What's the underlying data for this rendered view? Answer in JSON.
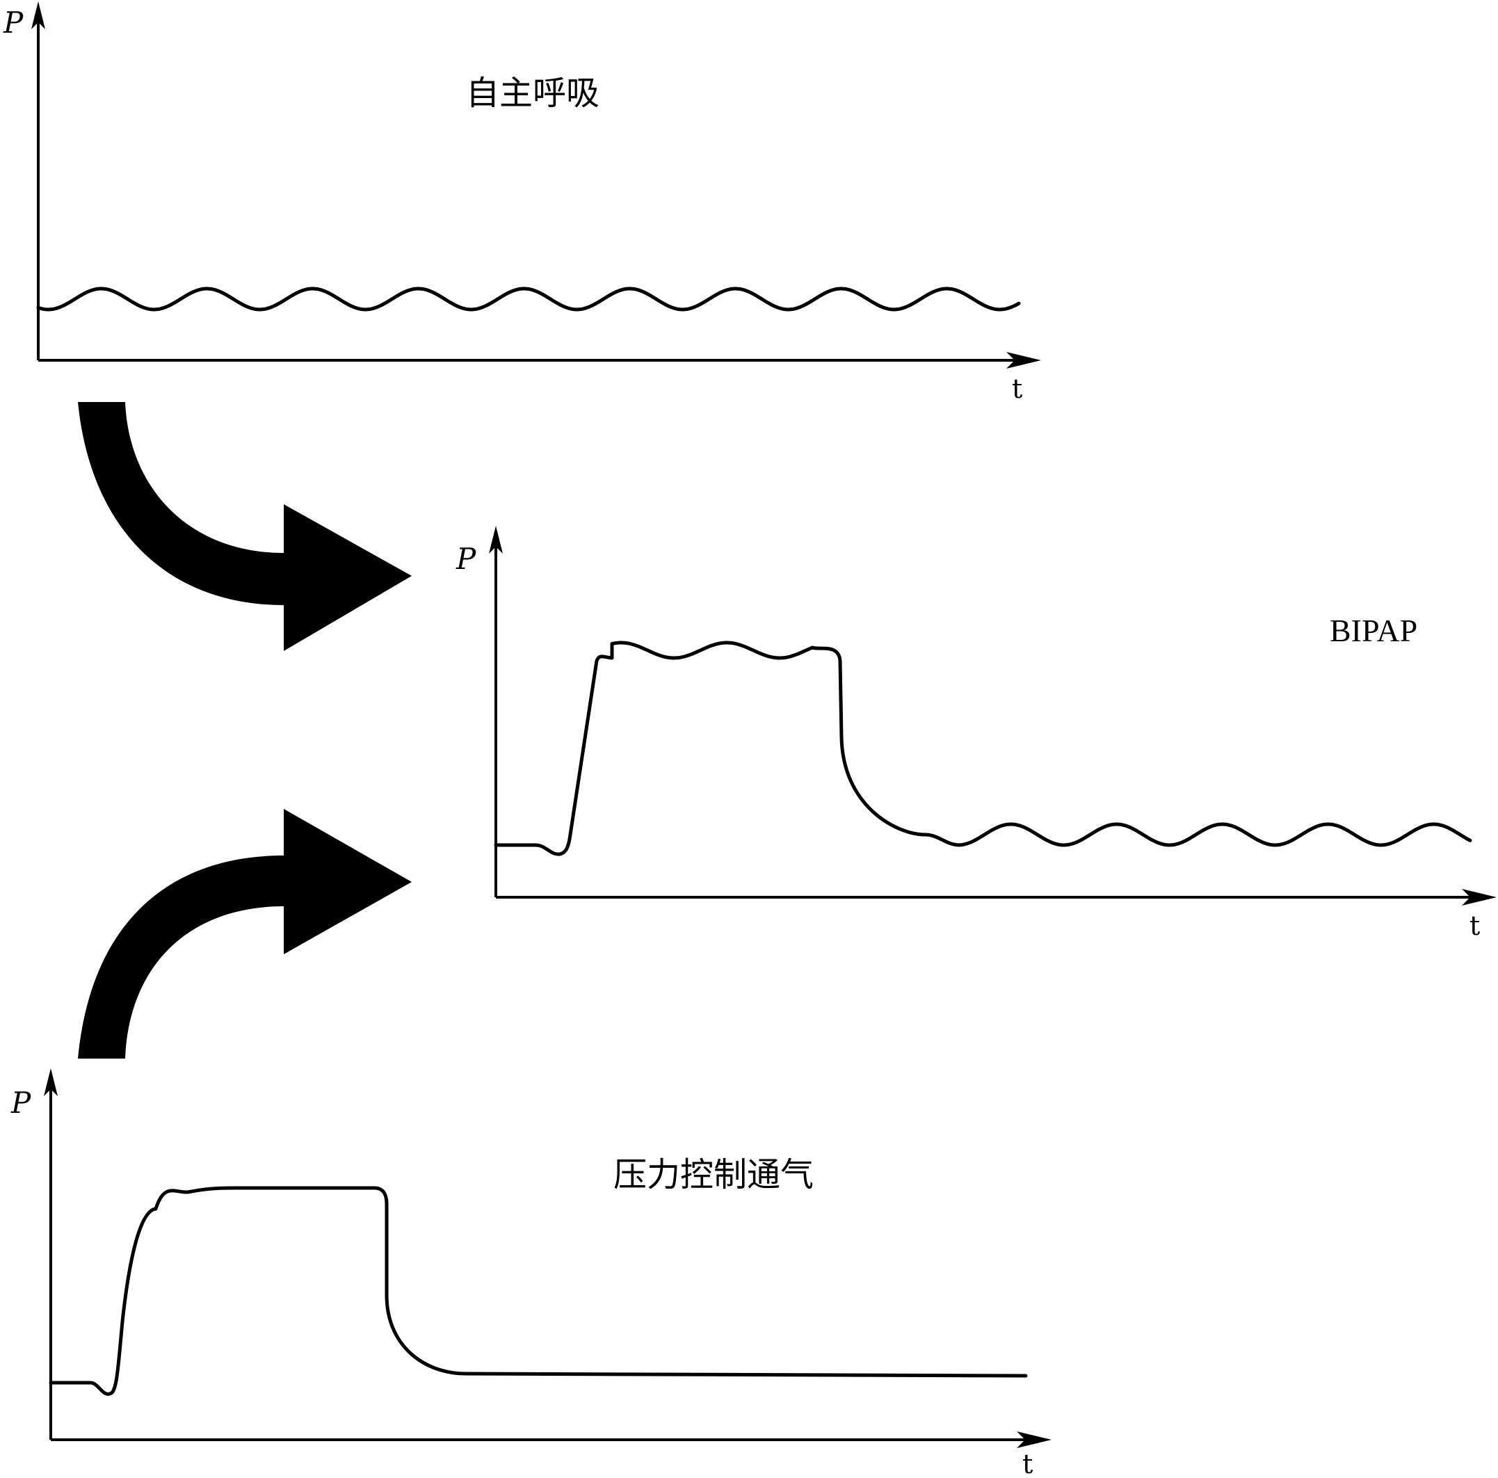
{
  "panels": {
    "spontaneous": {
      "title": "自主呼吸",
      "y_axis_label": "P",
      "x_axis_label": "t"
    },
    "bipap": {
      "title": "BIPAP",
      "y_axis_label": "P",
      "x_axis_label": "t"
    },
    "pressure_control": {
      "title": "压力控制通气",
      "y_axis_label": "P",
      "x_axis_label": "t"
    }
  },
  "arrows": [
    {
      "from": "spontaneous",
      "to": "bipap"
    },
    {
      "from": "pressure_control",
      "to": "bipap"
    }
  ],
  "colors": {
    "stroke": "#000000",
    "background": "#ffffff"
  }
}
